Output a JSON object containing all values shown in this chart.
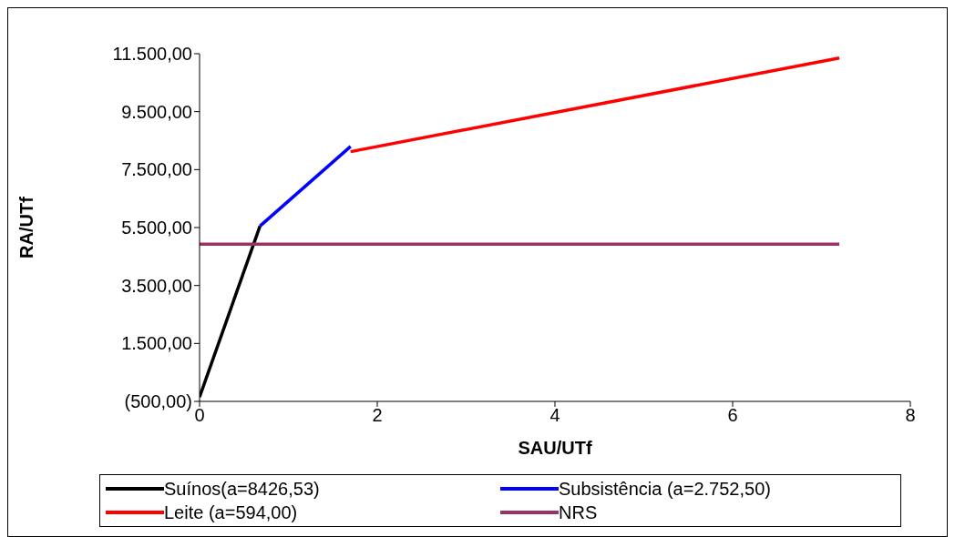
{
  "chart_data": {
    "type": "line",
    "xlabel": "SAU/UTf",
    "ylabel": "RA/UTf",
    "xlim": [
      0,
      8
    ],
    "xticks": [
      0,
      2,
      4,
      6,
      8
    ],
    "ylim": [
      -500,
      11500
    ],
    "yticks": [
      {
        "value": -500,
        "label": "(500,00)"
      },
      {
        "value": 1500,
        "label": "1.500,00"
      },
      {
        "value": 3500,
        "label": "3.500,00"
      },
      {
        "value": 5500,
        "label": "5.500,00"
      },
      {
        "value": 7500,
        "label": "7.500,00"
      },
      {
        "value": 9500,
        "label": "9.500,00"
      },
      {
        "value": 11500,
        "label": "11.500,00"
      }
    ],
    "grid": false,
    "legend": "bottom",
    "marker": "none",
    "line_style": "solid",
    "series": [
      {
        "name": "Suínos(a=8426,53)",
        "color": "#000000",
        "x": [
          0,
          0.68
        ],
        "values": [
          -350,
          5550
        ]
      },
      {
        "name": "Subsistência (a=2.752,50)",
        "color": "#0000ff",
        "x": [
          0.68,
          1.7
        ],
        "values": [
          5550,
          8300
        ]
      },
      {
        "name": "Leite (a=594,00)",
        "color": "#ff0000",
        "x": [
          1.7,
          7.2
        ],
        "values": [
          8120,
          11350
        ]
      },
      {
        "name": "NRS",
        "color": "#993366",
        "x": [
          0,
          7.2
        ],
        "values": [
          4930,
          4930
        ]
      }
    ]
  }
}
